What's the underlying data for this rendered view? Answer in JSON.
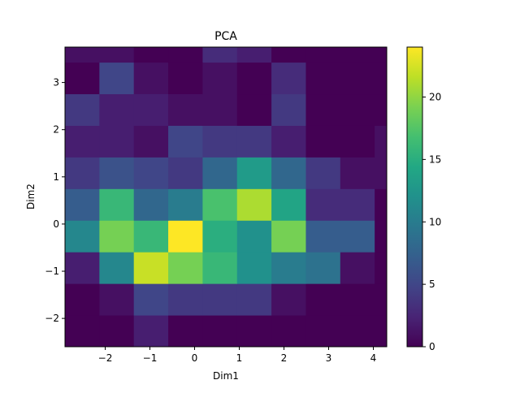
{
  "chart_data": {
    "type": "heatmap",
    "title": "PCA",
    "xlabel": "Dim1",
    "ylabel": "Dim2",
    "colormap": "viridis",
    "x_edges": [
      -2.9,
      -2.13,
      -1.36,
      -0.59,
      0.18,
      0.95,
      1.72,
      2.49,
      3.26,
      4.03,
      4.8
    ],
    "y_edges": [
      -2.6,
      -1.93,
      -1.26,
      -0.59,
      0.08,
      0.75,
      1.42,
      2.09,
      2.76,
      3.43,
      4.1
    ],
    "counts": [
      [
        0,
        0,
        2,
        0,
        0,
        0,
        0,
        0,
        0,
        0
      ],
      [
        0,
        1,
        5,
        4,
        4,
        4,
        1,
        0,
        0,
        0
      ],
      [
        2,
        11,
        22,
        19,
        16,
        12,
        10,
        9,
        1,
        0
      ],
      [
        11,
        19,
        16,
        24,
        15,
        12,
        19,
        7,
        7,
        0
      ],
      [
        7,
        16,
        8,
        10,
        17,
        21,
        14,
        3,
        3,
        0
      ],
      [
        4,
        6,
        5,
        4,
        8,
        13,
        8,
        4,
        1,
        1
      ],
      [
        2,
        2,
        1,
        5,
        4,
        4,
        2,
        0,
        0,
        1
      ],
      [
        4,
        2,
        2,
        1,
        1,
        0,
        4,
        0,
        0,
        0
      ],
      [
        0,
        5,
        1,
        0,
        1,
        0,
        3,
        0,
        0,
        0
      ],
      [
        1,
        1,
        0,
        0,
        3,
        2,
        0,
        0,
        0,
        0
      ]
    ],
    "xlim": [
      -2.9,
      4.3
    ],
    "ylim": [
      -2.6,
      3.75
    ],
    "xticks": [
      -2,
      -1,
      0,
      1,
      2,
      3,
      4
    ],
    "yticks": [
      -2,
      -1,
      0,
      1,
      2,
      3
    ],
    "colorbar": {
      "min": 0,
      "max": 24,
      "ticks": [
        0,
        5,
        10,
        15,
        20
      ]
    },
    "grid": false
  }
}
